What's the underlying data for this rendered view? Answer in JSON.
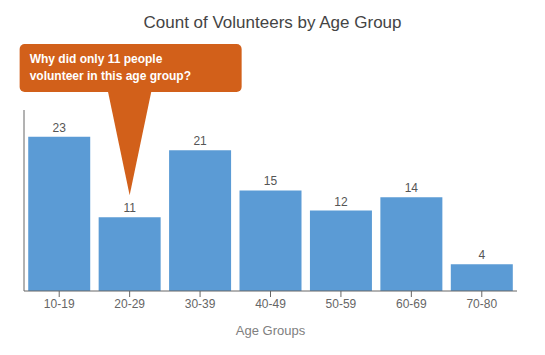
{
  "chart_data": {
    "type": "bar",
    "title": "Count of Volunteers by Age Group",
    "xlabel": "Age Groups",
    "categories": [
      "10-19",
      "20-29",
      "30-39",
      "40-49",
      "50-59",
      "60-69",
      "70-80"
    ],
    "values": [
      23,
      11,
      21,
      15,
      12,
      14,
      4
    ],
    "color": "#5B9BD5",
    "ylim": [
      0,
      27
    ],
    "data_labels": true,
    "tick_labels": "x",
    "grid": false,
    "annotations": [
      {
        "text": "Why did only 11 people\nvolunteer in this age group?",
        "x": "20-29",
        "y": 11,
        "color": "#D2601A"
      }
    ]
  }
}
